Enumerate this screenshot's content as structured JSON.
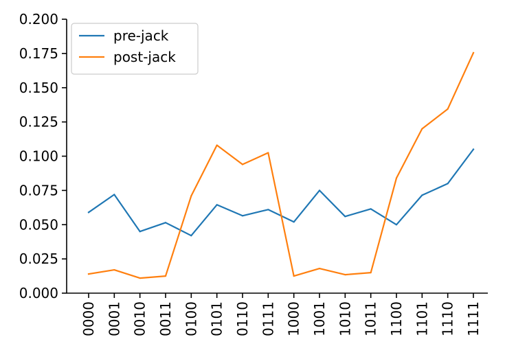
{
  "chart_data": {
    "type": "line",
    "title": "",
    "xlabel": "",
    "ylabel": "",
    "categories": [
      "0000",
      "0001",
      "0010",
      "0011",
      "0100",
      "0101",
      "0110",
      "0111",
      "1000",
      "1001",
      "1010",
      "1011",
      "1100",
      "1101",
      "1110",
      "1111"
    ],
    "ylim": [
      0,
      0.2
    ],
    "yticks": [
      "0.000",
      "0.025",
      "0.050",
      "0.075",
      "0.100",
      "0.125",
      "0.150",
      "0.175",
      "0.200"
    ],
    "grid": false,
    "legend_position": "top-left",
    "series": [
      {
        "name": "pre-jack",
        "color": "#1f77b4",
        "values": [
          0.059,
          0.072,
          0.045,
          0.0515,
          0.042,
          0.0645,
          0.0565,
          0.061,
          0.052,
          0.075,
          0.056,
          0.0615,
          0.05,
          0.0715,
          0.08,
          0.105
        ]
      },
      {
        "name": "post-jack",
        "color": "#ff7f0e",
        "values": [
          0.014,
          0.017,
          0.011,
          0.0125,
          0.071,
          0.108,
          0.094,
          0.1025,
          0.0125,
          0.018,
          0.0135,
          0.015,
          0.084,
          0.12,
          0.1345,
          0.1755
        ]
      }
    ]
  }
}
